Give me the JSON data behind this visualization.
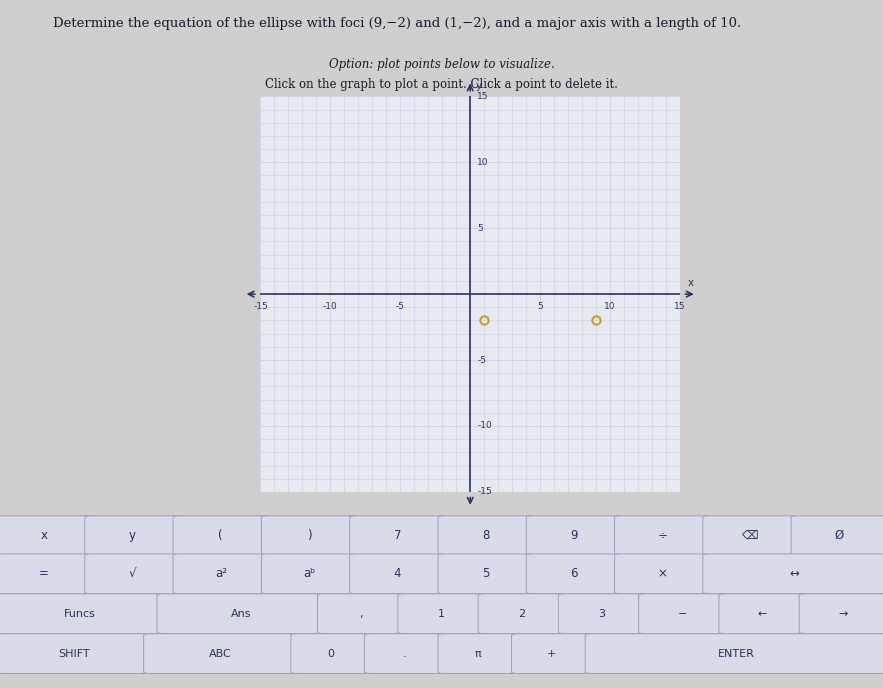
{
  "title": "Determine the equation of the ellipse with foci (9,−2) and (1,−2), and a major axis with a length of 10.",
  "subtitle1": "Option: plot points below to visualize.",
  "subtitle2": "Click on the graph to plot a point. Click a point to delete it.",
  "page_bg": "#d0cece",
  "content_bg": "#d8d6d4",
  "graph_bg": "#e8eaf2",
  "graph_grid_color": "#b8bcd4",
  "graph_axis_color": "#2a3560",
  "graph_xlim": [
    -15,
    15
  ],
  "graph_ylim": [
    -15,
    15
  ],
  "foci_points": [
    [
      1,
      -2
    ],
    [
      9,
      -2
    ]
  ],
  "foci_color": "#c8a020",
  "keyboard_bg": "#c4c8d4",
  "key_bg": "#d8dce8",
  "key_border": "#9aa0b8",
  "key_text_color": "#2a3060",
  "row0_keys": [
    "x",
    "y",
    "(",
    ")",
    "7",
    "8",
    "9",
    "÷",
    "⌫",
    "Ø"
  ],
  "row1_keys": [
    "=",
    "√",
    "a²",
    "aᵇ",
    "4",
    "5",
    "6",
    "×",
    "↔"
  ],
  "row2_keys": [
    "Funcs",
    "Ans",
    ",",
    "1",
    "2",
    "3",
    "−",
    "←",
    "→"
  ],
  "row3_keys": [
    "SHIFT",
    "ABC",
    "0",
    ".",
    "π",
    "+",
    "ENTER"
  ]
}
